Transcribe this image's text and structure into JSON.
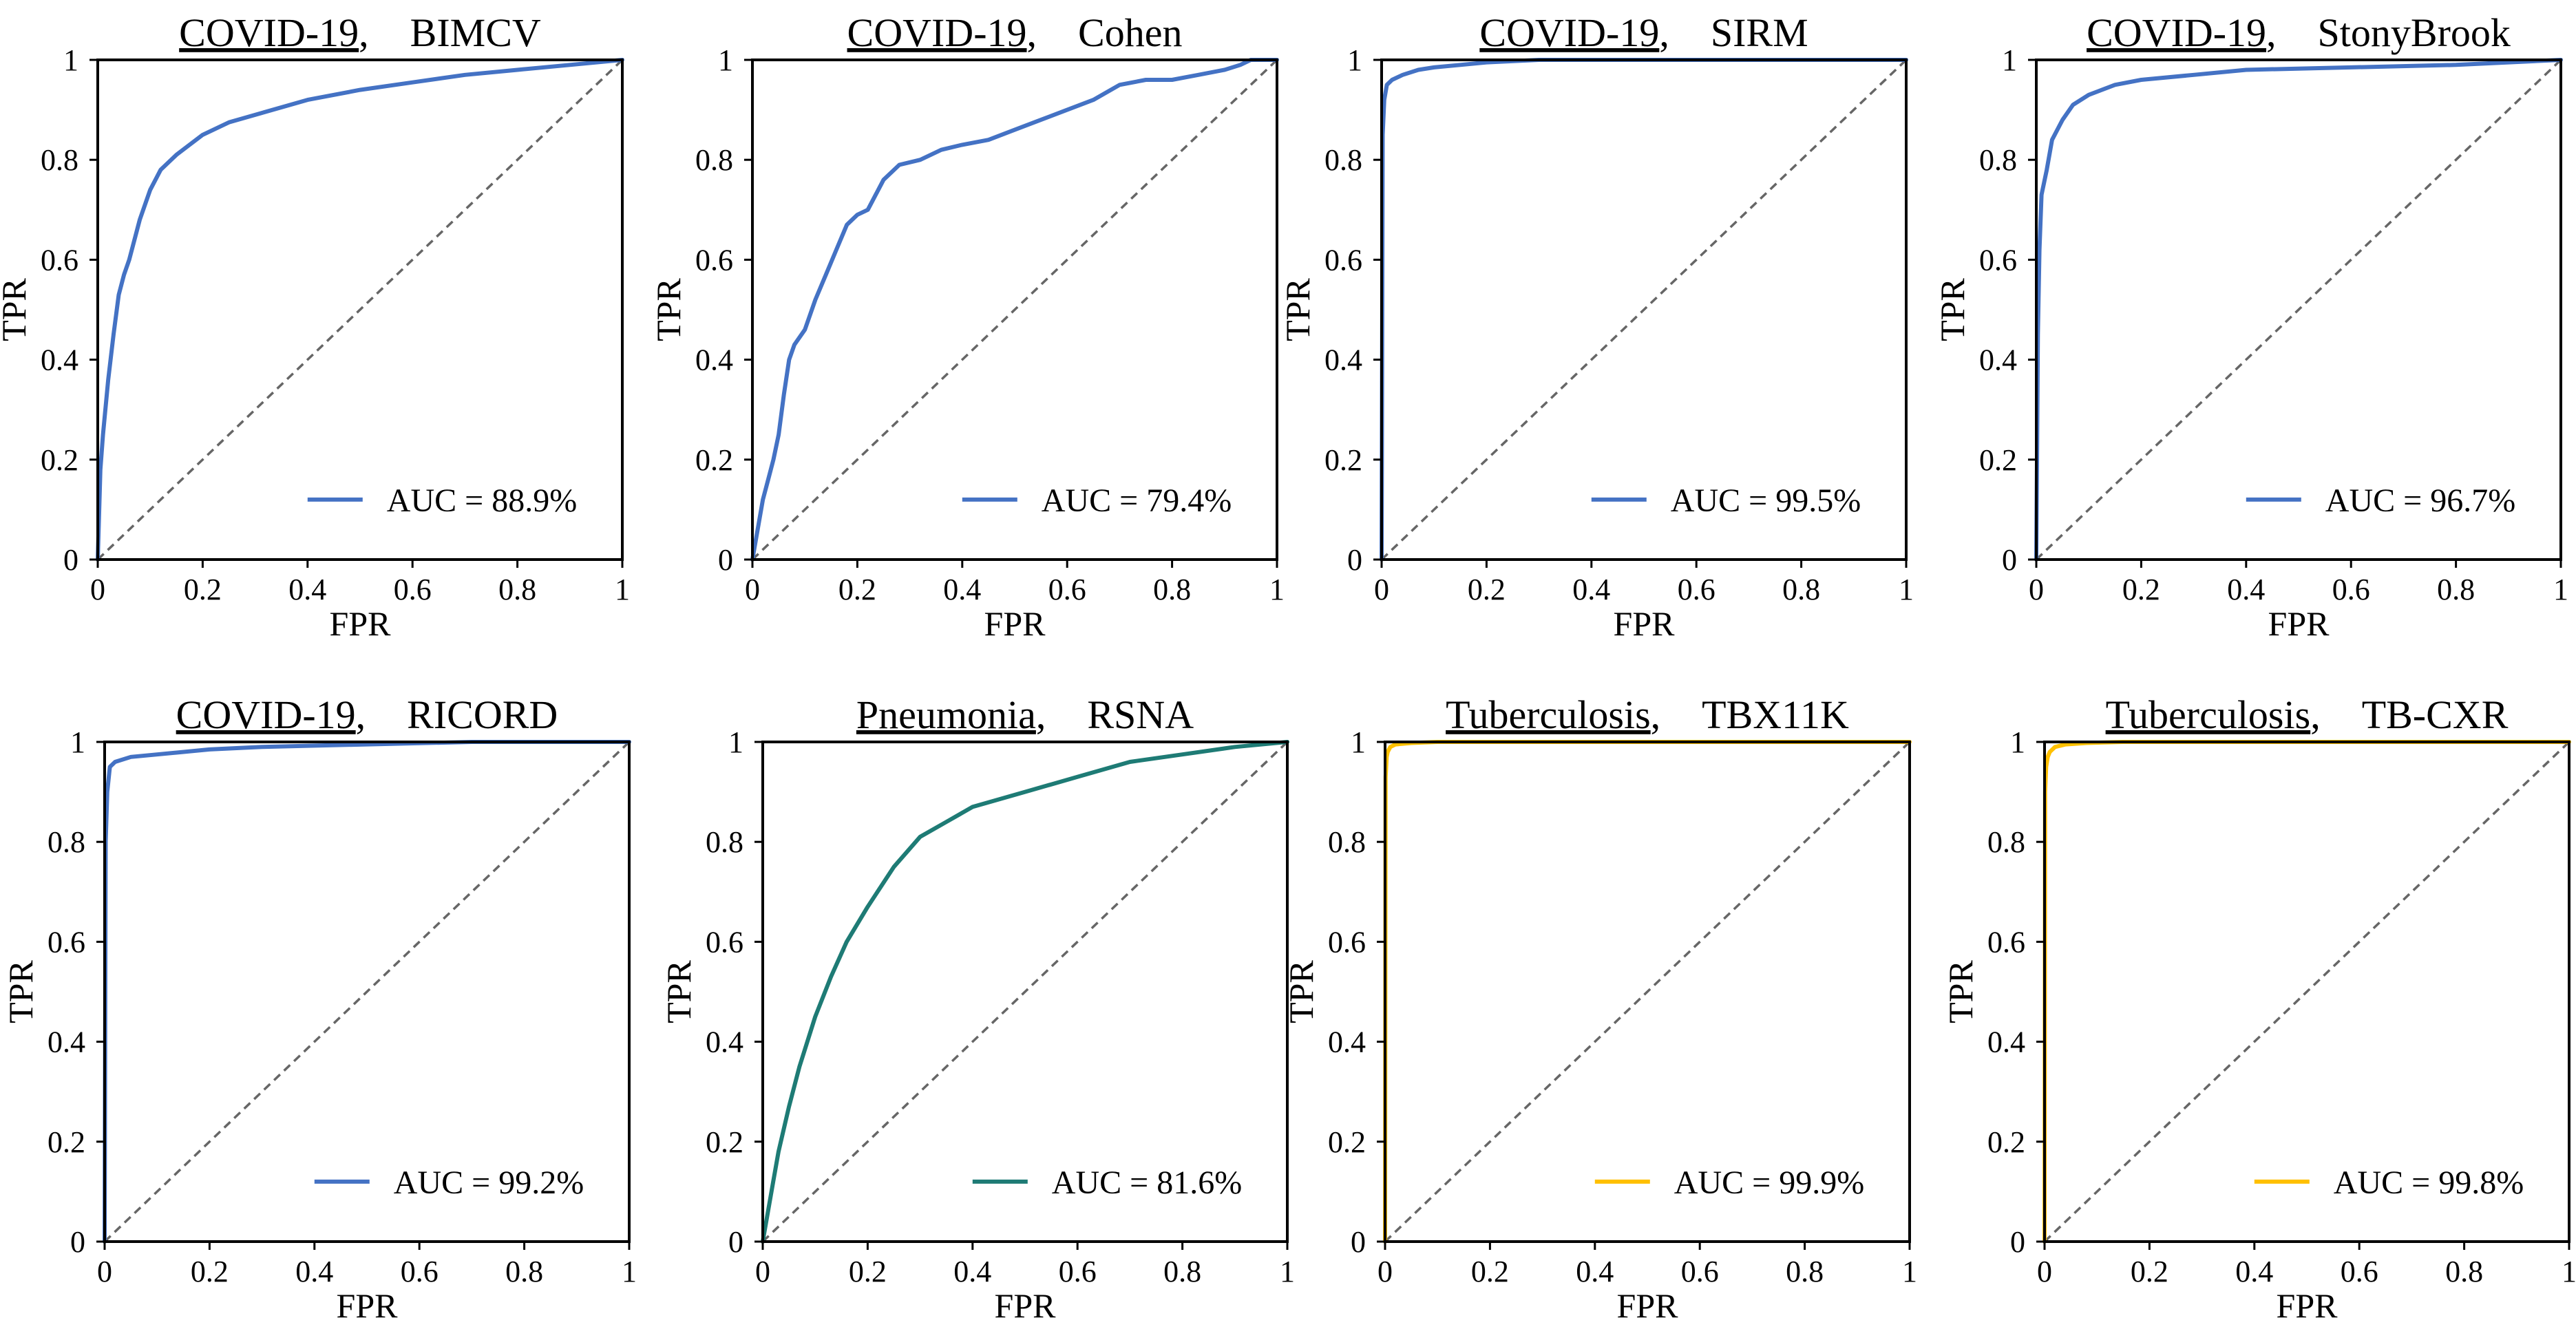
{
  "figure": {
    "description_type": "ROC curve grid"
  },
  "chart_data": [
    {
      "type": "line",
      "title_disease": "COVID-19",
      "title_dataset": "BIMCV",
      "xlabel": "FPR",
      "ylabel": "TPR",
      "xlim": [
        0,
        1
      ],
      "ylim": [
        0,
        1
      ],
      "xticks": [
        "0",
        "0.2",
        "0.4",
        "0.6",
        "0.8",
        "1"
      ],
      "yticks": [
        "0",
        "0.2",
        "0.4",
        "0.6",
        "0.8",
        "1"
      ],
      "color": "#4472C4",
      "legend": "AUC = 88.9%",
      "legend_position": "bottom-right",
      "diagonal": true,
      "series": [
        {
          "name": "AUC = 88.9%",
          "x": [
            0,
            0.005,
            0.01,
            0.02,
            0.03,
            0.04,
            0.05,
            0.06,
            0.08,
            0.1,
            0.12,
            0.15,
            0.2,
            0.25,
            0.3,
            0.4,
            0.5,
            0.6,
            0.7,
            0.8,
            0.9,
            1
          ],
          "y": [
            0,
            0.18,
            0.25,
            0.36,
            0.45,
            0.53,
            0.57,
            0.6,
            0.68,
            0.74,
            0.78,
            0.81,
            0.85,
            0.875,
            0.89,
            0.92,
            0.94,
            0.955,
            0.97,
            0.98,
            0.99,
            1
          ]
        }
      ]
    },
    {
      "type": "line",
      "title_disease": "COVID-19",
      "title_dataset": "Cohen",
      "xlabel": "FPR",
      "ylabel": "TPR",
      "xlim": [
        0,
        1
      ],
      "ylim": [
        0,
        1
      ],
      "xticks": [
        "0",
        "0.2",
        "0.4",
        "0.6",
        "0.8",
        "1"
      ],
      "yticks": [
        "0",
        "0.2",
        "0.4",
        "0.6",
        "0.8",
        "1"
      ],
      "color": "#4472C4",
      "legend": "AUC = 79.4%",
      "legend_position": "bottom-right",
      "diagonal": true,
      "series": [
        {
          "name": "AUC = 79.4%",
          "x": [
            0,
            0.01,
            0.02,
            0.03,
            0.04,
            0.05,
            0.06,
            0.07,
            0.08,
            0.1,
            0.12,
            0.14,
            0.16,
            0.18,
            0.2,
            0.22,
            0.25,
            0.28,
            0.32,
            0.36,
            0.4,
            0.45,
            0.5,
            0.55,
            0.6,
            0.65,
            0.7,
            0.75,
            0.8,
            0.85,
            0.9,
            0.93,
            0.95,
            1
          ],
          "y": [
            0,
            0.06,
            0.12,
            0.16,
            0.2,
            0.25,
            0.33,
            0.4,
            0.43,
            0.46,
            0.52,
            0.57,
            0.62,
            0.67,
            0.69,
            0.7,
            0.76,
            0.79,
            0.8,
            0.82,
            0.83,
            0.84,
            0.86,
            0.88,
            0.9,
            0.92,
            0.95,
            0.96,
            0.96,
            0.97,
            0.98,
            0.99,
            1,
            1
          ]
        }
      ]
    },
    {
      "type": "line",
      "title_disease": "COVID-19",
      "title_dataset": "SIRM",
      "xlabel": "FPR",
      "ylabel": "TPR",
      "xlim": [
        0,
        1
      ],
      "ylim": [
        0,
        1
      ],
      "xticks": [
        "0",
        "0.2",
        "0.4",
        "0.6",
        "0.8",
        "1"
      ],
      "yticks": [
        "0",
        "0.2",
        "0.4",
        "0.6",
        "0.8",
        "1"
      ],
      "color": "#4472C4",
      "legend": "AUC = 99.5%",
      "legend_position": "bottom-right",
      "diagonal": true,
      "series": [
        {
          "name": "AUC = 99.5%",
          "x": [
            0,
            0.002,
            0.005,
            0.01,
            0.02,
            0.04,
            0.07,
            0.1,
            0.15,
            0.2,
            0.3,
            0.5,
            1
          ],
          "y": [
            0,
            0.85,
            0.92,
            0.95,
            0.96,
            0.97,
            0.98,
            0.985,
            0.99,
            0.995,
            1,
            1,
            1
          ]
        }
      ]
    },
    {
      "type": "line",
      "title_disease": "COVID-19",
      "title_dataset": "StonyBrook",
      "xlabel": "FPR",
      "ylabel": "TPR",
      "xlim": [
        0,
        1
      ],
      "ylim": [
        0,
        1
      ],
      "xticks": [
        "0",
        "0.2",
        "0.4",
        "0.6",
        "0.8",
        "1"
      ],
      "yticks": [
        "0",
        "0.2",
        "0.4",
        "0.6",
        "0.8",
        "1"
      ],
      "color": "#4472C4",
      "legend": "AUC = 96.7%",
      "legend_position": "bottom-right",
      "diagonal": true,
      "series": [
        {
          "name": "AUC = 96.7%",
          "x": [
            0,
            0.003,
            0.006,
            0.01,
            0.02,
            0.03,
            0.05,
            0.07,
            0.1,
            0.15,
            0.2,
            0.3,
            0.4,
            0.6,
            0.8,
            1
          ],
          "y": [
            0,
            0.45,
            0.62,
            0.73,
            0.78,
            0.84,
            0.88,
            0.91,
            0.93,
            0.95,
            0.96,
            0.97,
            0.98,
            0.985,
            0.99,
            1
          ]
        }
      ]
    },
    {
      "type": "line",
      "title_disease": "COVID-19",
      "title_dataset": "RICORD",
      "xlabel": "FPR",
      "ylabel": "TPR",
      "xlim": [
        0,
        1
      ],
      "ylim": [
        0,
        1
      ],
      "xticks": [
        "0",
        "0.2",
        "0.4",
        "0.6",
        "0.8",
        "1"
      ],
      "yticks": [
        "0",
        "0.2",
        "0.4",
        "0.6",
        "0.8",
        "1"
      ],
      "color": "#4472C4",
      "legend": "AUC = 99.2%",
      "legend_position": "bottom-right",
      "diagonal": true,
      "series": [
        {
          "name": "AUC = 99.2%",
          "x": [
            0,
            0.002,
            0.005,
            0.01,
            0.02,
            0.05,
            0.1,
            0.2,
            0.3,
            0.5,
            0.7,
            1
          ],
          "y": [
            0,
            0.8,
            0.9,
            0.95,
            0.96,
            0.97,
            0.975,
            0.985,
            0.99,
            0.995,
            1,
            1
          ]
        }
      ]
    },
    {
      "type": "line",
      "title_disease": "Pneumonia",
      "title_dataset": "RSNA",
      "xlabel": "FPR",
      "ylabel": "TPR",
      "xlim": [
        0,
        1
      ],
      "ylim": [
        0,
        1
      ],
      "xticks": [
        "0",
        "0.2",
        "0.4",
        "0.6",
        "0.8",
        "1"
      ],
      "yticks": [
        "0",
        "0.2",
        "0.4",
        "0.6",
        "0.8",
        "1"
      ],
      "color": "#1E7B75",
      "legend": "AUC = 81.6%",
      "legend_position": "bottom-right",
      "diagonal": true,
      "series": [
        {
          "name": "AUC = 81.6%",
          "x": [
            0,
            0.01,
            0.02,
            0.03,
            0.05,
            0.07,
            0.1,
            0.13,
            0.16,
            0.2,
            0.25,
            0.3,
            0.35,
            0.4,
            0.5,
            0.6,
            0.7,
            0.8,
            0.9,
            1
          ],
          "y": [
            0,
            0.06,
            0.12,
            0.18,
            0.27,
            0.35,
            0.45,
            0.53,
            0.6,
            0.67,
            0.75,
            0.81,
            0.84,
            0.87,
            0.9,
            0.93,
            0.96,
            0.975,
            0.99,
            1
          ]
        }
      ]
    },
    {
      "type": "line",
      "title_disease": "Tuberculosis",
      "title_dataset": "TBX11K",
      "xlabel": "FPR",
      "ylabel": "TPR",
      "xlim": [
        0,
        1
      ],
      "ylim": [
        0,
        1
      ],
      "xticks": [
        "0",
        "0.2",
        "0.4",
        "0.6",
        "0.8",
        "1"
      ],
      "yticks": [
        "0",
        "0.2",
        "0.4",
        "0.6",
        "0.8",
        "1"
      ],
      "color": "#FFC000",
      "legend": "AUC = 99.9%",
      "legend_position": "bottom-right",
      "diagonal": true,
      "series": [
        {
          "name": "AUC = 99.9%",
          "x": [
            0,
            0.001,
            0.003,
            0.005,
            0.01,
            0.02,
            0.05,
            0.1,
            1
          ],
          "y": [
            0,
            0.93,
            0.97,
            0.98,
            0.99,
            0.995,
            0.998,
            1,
            1
          ]
        }
      ]
    },
    {
      "type": "line",
      "title_disease": "Tuberculosis",
      "title_dataset": "TB-CXR",
      "xlabel": "FPR",
      "ylabel": "TPR",
      "xlim": [
        0,
        1
      ],
      "ylim": [
        0,
        1
      ],
      "xticks": [
        "0",
        "0.2",
        "0.4",
        "0.6",
        "0.8",
        "1"
      ],
      "yticks": [
        "0",
        "0.2",
        "0.4",
        "0.6",
        "0.8",
        "1"
      ],
      "color": "#FFC000",
      "legend": "AUC = 99.8%",
      "legend_position": "bottom-right",
      "diagonal": true,
      "series": [
        {
          "name": "AUC = 99.8%",
          "x": [
            0,
            0.001,
            0.003,
            0.006,
            0.01,
            0.02,
            0.04,
            0.08,
            0.15,
            1
          ],
          "y": [
            0,
            0.9,
            0.95,
            0.97,
            0.98,
            0.99,
            0.995,
            0.998,
            1,
            1
          ]
        }
      ]
    }
  ]
}
